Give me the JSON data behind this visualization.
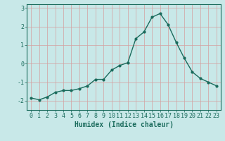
{
  "x": [
    0,
    1,
    2,
    3,
    4,
    5,
    6,
    7,
    8,
    9,
    10,
    11,
    12,
    13,
    14,
    15,
    16,
    17,
    18,
    19,
    20,
    21,
    22,
    23
  ],
  "y": [
    -1.85,
    -1.95,
    -1.8,
    -1.55,
    -1.45,
    -1.45,
    -1.35,
    -1.2,
    -0.85,
    -0.85,
    -0.35,
    -0.1,
    0.05,
    1.35,
    1.7,
    2.5,
    2.7,
    2.1,
    1.15,
    0.3,
    -0.45,
    -0.8,
    -1.0,
    -1.2
  ],
  "line_color": "#1a6b5c",
  "bg_color": "#c8e8e8",
  "grid_color": "#d4a0a0",
  "xlabel": "Humidex (Indice chaleur)",
  "ylim": [
    -2.5,
    3.2
  ],
  "xlim": [
    -0.5,
    23.5
  ],
  "yticks": [
    -2,
    -1,
    0,
    1,
    2,
    3
  ],
  "xticks": [
    0,
    1,
    2,
    3,
    4,
    5,
    6,
    7,
    8,
    9,
    10,
    11,
    12,
    13,
    14,
    15,
    16,
    17,
    18,
    19,
    20,
    21,
    22,
    23
  ],
  "xtick_labels": [
    "0",
    "1",
    "2",
    "3",
    "4",
    "5",
    "6",
    "7",
    "8",
    "9",
    "10",
    "11",
    "12",
    "13",
    "14",
    "15",
    "16",
    "17",
    "18",
    "19",
    "20",
    "21",
    "22",
    "23"
  ],
  "ytick_labels": [
    "-2",
    "-1",
    "0",
    "1",
    "2",
    "3"
  ],
  "xlabel_fontsize": 7,
  "tick_fontsize": 6,
  "marker": "o",
  "markersize": 2.0,
  "linewidth": 1.0
}
